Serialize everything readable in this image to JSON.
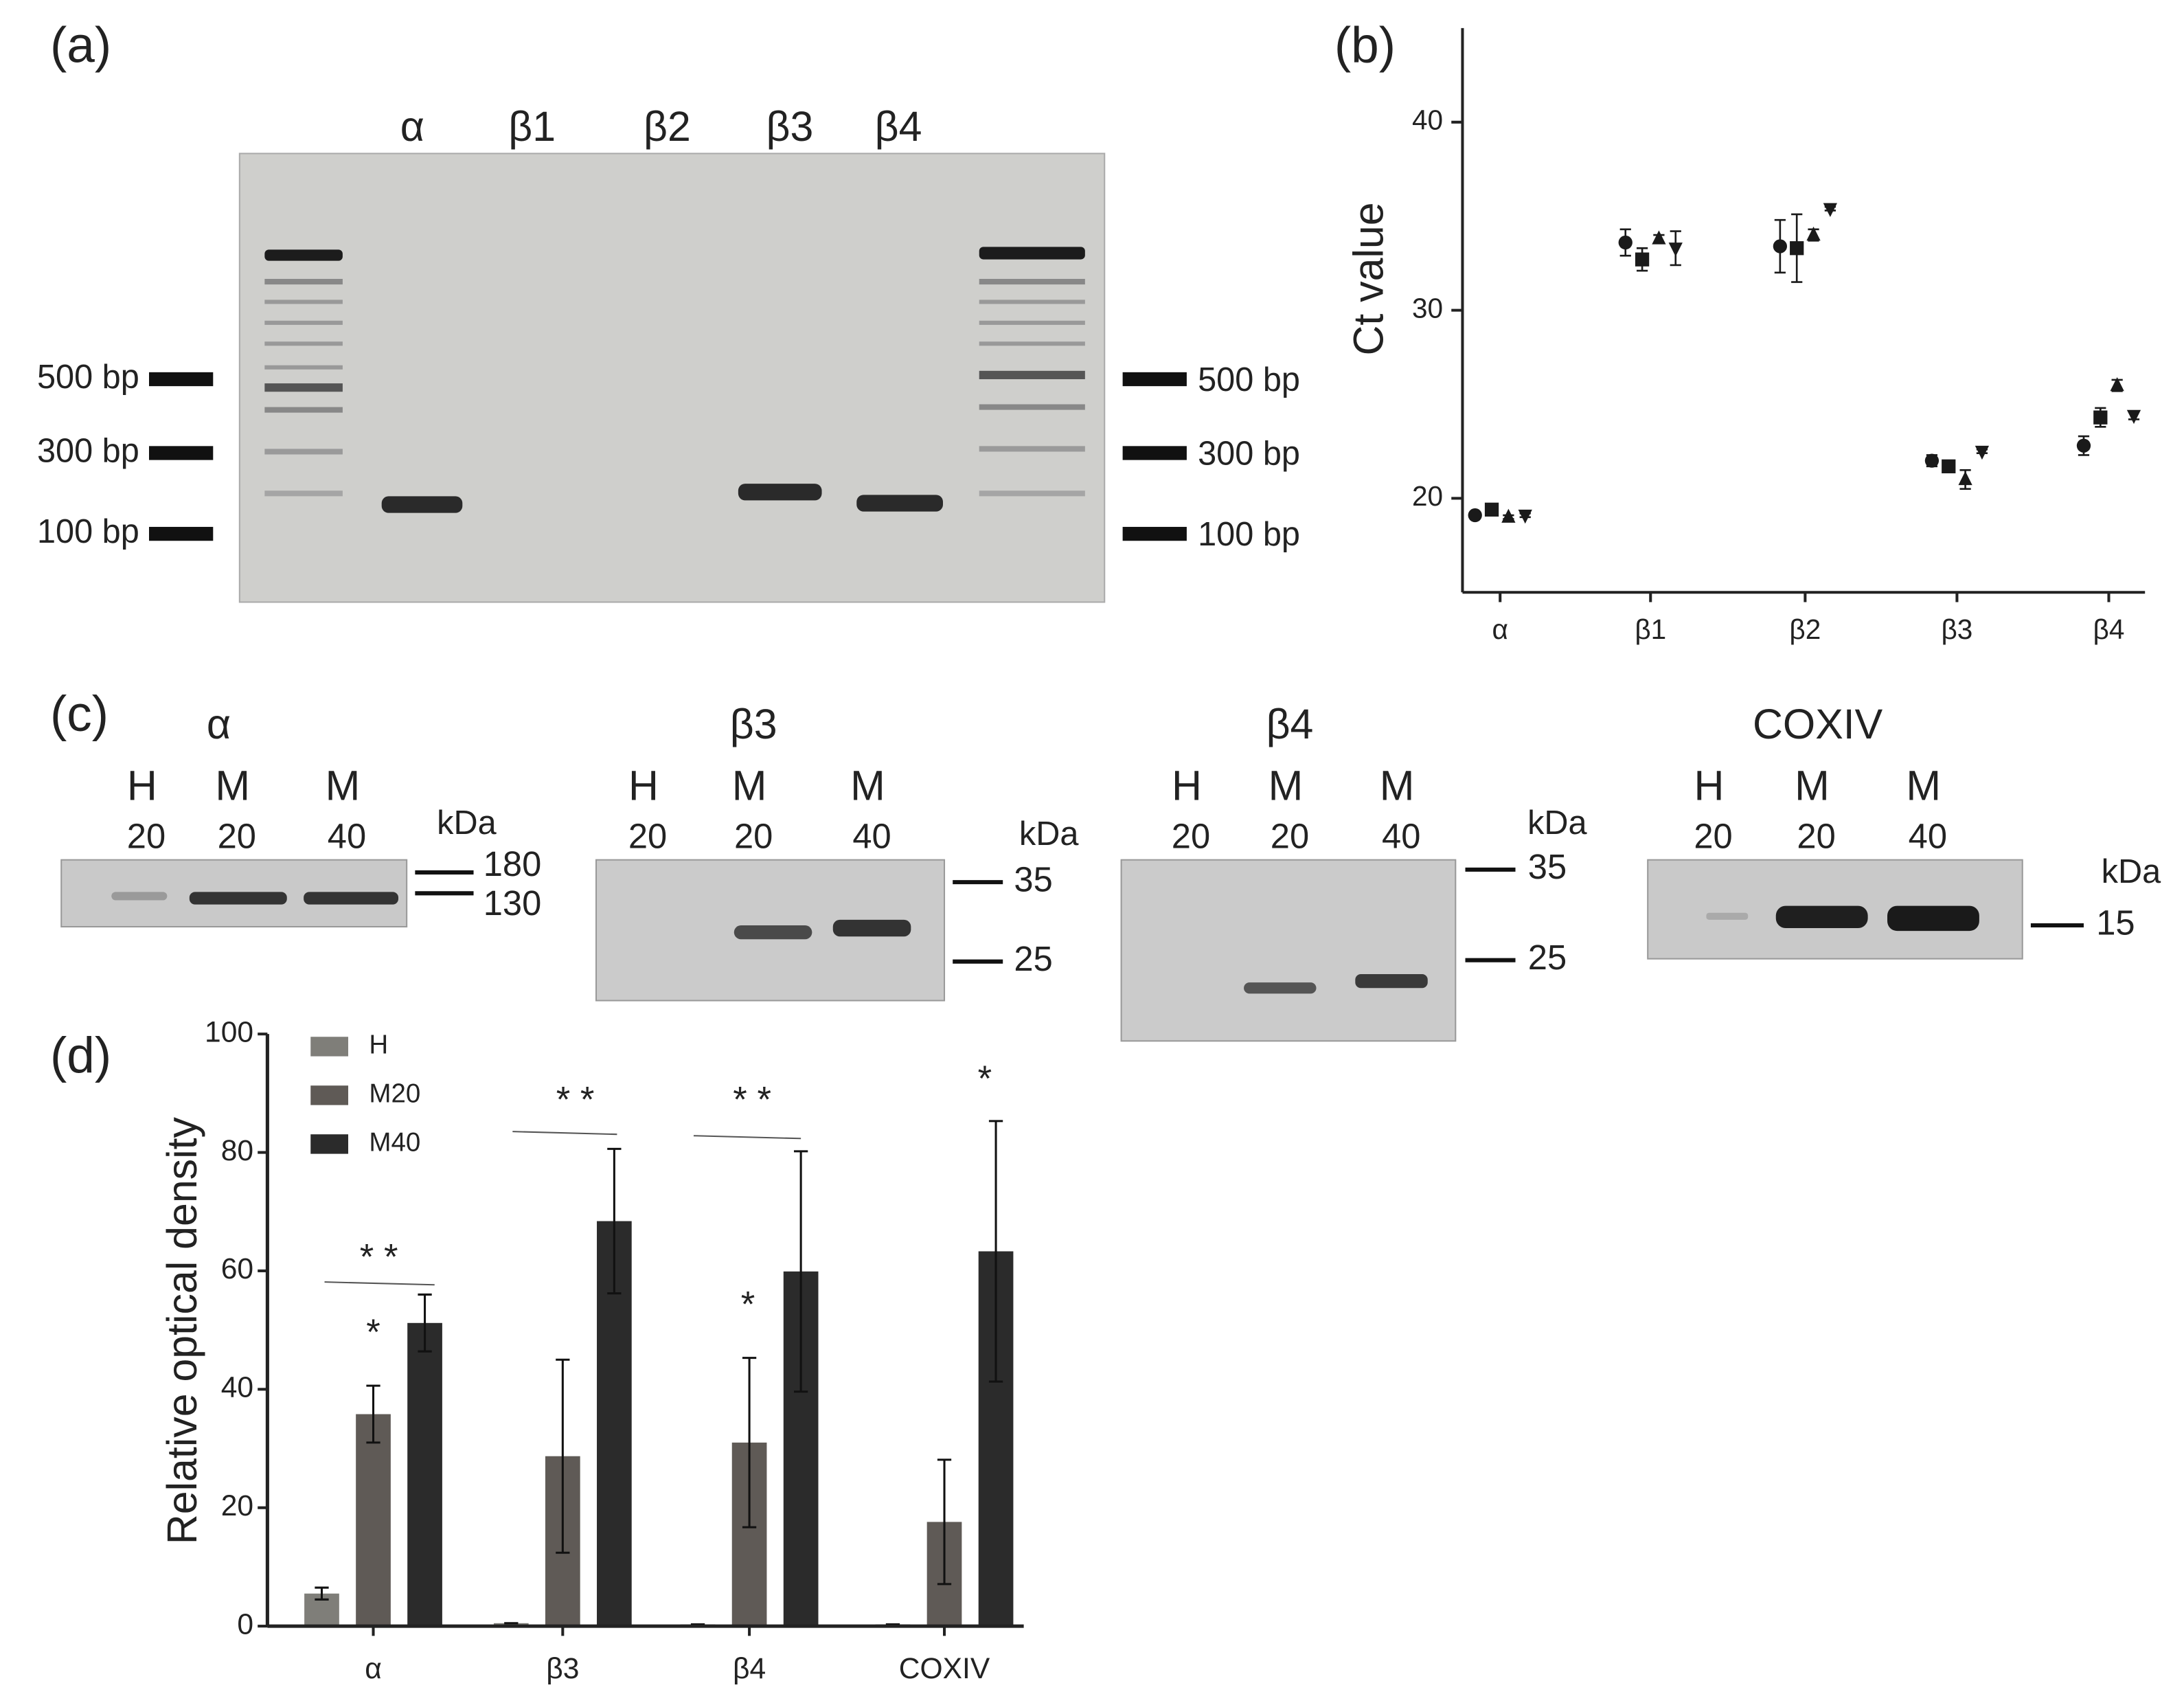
{
  "panel_labels": [
    "(a)",
    "(b)",
    "(c)",
    "(d)"
  ],
  "gel": {
    "lanes": [
      "α",
      "β1",
      "β2",
      "β3",
      "β4"
    ],
    "markers_left": [
      "500 bp",
      "300 bp",
      "100 bp"
    ],
    "markers_right": [
      "500 bp",
      "300 bp",
      "100 bp"
    ]
  },
  "blots": [
    {
      "title": "α",
      "lanes": [
        "H",
        "M",
        "M"
      ],
      "amounts": [
        "20",
        "20",
        "40"
      ],
      "unit": "kDa",
      "markers": [
        "180",
        "130"
      ]
    },
    {
      "title": "β3",
      "lanes": [
        "H",
        "M",
        "M"
      ],
      "amounts": [
        "20",
        "20",
        "40"
      ],
      "unit": "kDa",
      "markers": [
        "35",
        "25"
      ]
    },
    {
      "title": "β4",
      "lanes": [
        "H",
        "M",
        "M"
      ],
      "amounts": [
        "20",
        "20",
        "40"
      ],
      "unit": "kDa",
      "markers": [
        "35",
        "25"
      ]
    },
    {
      "title": "COXIV",
      "lanes": [
        "H",
        "M",
        "M"
      ],
      "amounts": [
        "20",
        "20",
        "40"
      ],
      "unit": "kDa",
      "markers": [
        "15"
      ]
    }
  ],
  "chart_data": [
    {
      "type": "scatter",
      "y_label": "Ct value",
      "categories": [
        "α",
        "β1",
        "β2",
        "β3",
        "β4"
      ],
      "ylim": [
        15,
        45
      ],
      "yticks": [
        20,
        30,
        40
      ],
      "series": [
        {
          "marker": "circle",
          "color": "#1a1a1a",
          "values": [
            19.1,
            33.6,
            33.4,
            22.0,
            22.8
          ],
          "errors": [
            0.1,
            0.7,
            1.4,
            0.3,
            0.5
          ]
        },
        {
          "marker": "square",
          "color": "#1a1a1a",
          "values": [
            19.4,
            32.7,
            33.3,
            21.7,
            24.3
          ],
          "errors": [
            0.1,
            0.6,
            1.8,
            0.1,
            0.5
          ]
        },
        {
          "marker": "triangle",
          "color": "#1a1a1a",
          "values": [
            19.0,
            33.8,
            34.0,
            21.0,
            26.0
          ],
          "errors": [
            0.1,
            0.2,
            0.3,
            0.5,
            0.3
          ]
        },
        {
          "marker": "triangle-down",
          "color": "#1a1a1a",
          "values": [
            19.1,
            33.3,
            35.4,
            22.5,
            24.4
          ],
          "errors": [
            0.1,
            0.9,
            0.1,
            0.1,
            0.2
          ]
        }
      ]
    },
    {
      "type": "bar",
      "y_label": "Relative optical density",
      "categories": [
        "α",
        "β3",
        "β4",
        "COXIV"
      ],
      "ylim": [
        0,
        100
      ],
      "yticks": [
        0,
        20,
        40,
        60,
        80,
        100
      ],
      "legend": "top-left",
      "series": [
        {
          "name": "H",
          "color": "#7f7e79",
          "values": [
            5.5,
            0.5,
            0.3,
            0.3
          ],
          "errors": [
            1.0,
            0,
            0,
            0
          ]
        },
        {
          "name": "M20",
          "color": "#5f5a56",
          "values": [
            35.8,
            28.7,
            31.0,
            17.6
          ],
          "errors": [
            4.8,
            16.3,
            14.3,
            10.5
          ]
        },
        {
          "name": "M40",
          "color": "#2b2b2b",
          "values": [
            51.2,
            68.4,
            59.9,
            63.3
          ],
          "errors": [
            4.8,
            12.2,
            20.3,
            22.0
          ]
        }
      ],
      "annotations": [
        "*",
        "* *",
        "* *",
        "* *",
        "*",
        "*"
      ]
    }
  ]
}
